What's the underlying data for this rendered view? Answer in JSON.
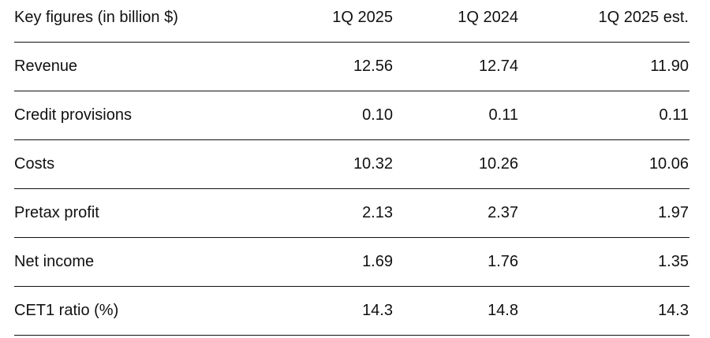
{
  "table": {
    "header": [
      "Key figures (in billion $)",
      "1Q 2025",
      "1Q 2024",
      "1Q 2025 est."
    ],
    "rows": [
      [
        "Revenue",
        "12.56",
        "12.74",
        "11.90"
      ],
      [
        "Credit provisions",
        "0.10",
        "0.11",
        "0.11"
      ],
      [
        "Costs",
        "10.32",
        "10.26",
        "10.06"
      ],
      [
        "Pretax profit",
        "2.13",
        "2.37",
        "1.97"
      ],
      [
        "Net income",
        "1.69",
        "1.76",
        "1.35"
      ],
      [
        "CET1 ratio (%)",
        "14.3",
        "14.8",
        "14.3"
      ]
    ]
  }
}
